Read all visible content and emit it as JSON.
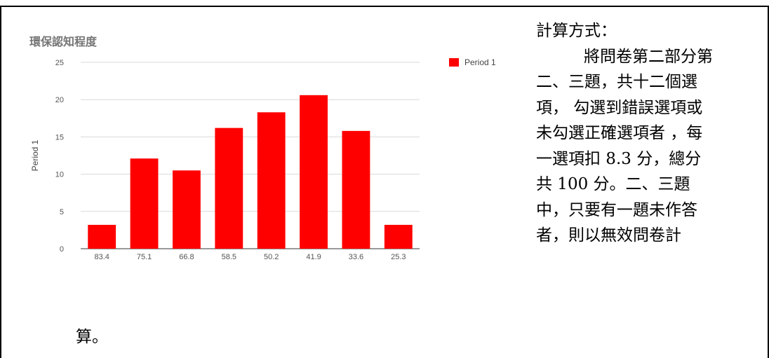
{
  "chart_data": {
    "type": "bar",
    "title": "環保認知程度",
    "ylabel": "Period 1",
    "xlabel": "",
    "categories": [
      "83.4",
      "75.1",
      "66.8",
      "58.5",
      "50.2",
      "41.9",
      "33.6",
      "25.3"
    ],
    "series": [
      {
        "name": "Period 1",
        "values": [
          3.2,
          12.1,
          10.5,
          16.2,
          18.3,
          20.6,
          15.8,
          3.2
        ]
      }
    ],
    "ylim": [
      0,
      25
    ],
    "yticks": [
      "0",
      "5",
      "10",
      "15",
      "20",
      "25"
    ],
    "grid": true,
    "legend": "top-right",
    "bar_color": "#ff0000"
  },
  "text": {
    "heading": "計算方式：",
    "lines": [
      "將問卷第二部分第",
      "二、三題，共十二個選",
      "項， 勾選到錯誤選項或",
      "未勾選正確選項者 ，每",
      "一選項扣 8.3 分，總分",
      "共 100 分。二、三題",
      "中，只要有一題未作答",
      "者，則以無效問卷計"
    ],
    "tail": "算。"
  }
}
